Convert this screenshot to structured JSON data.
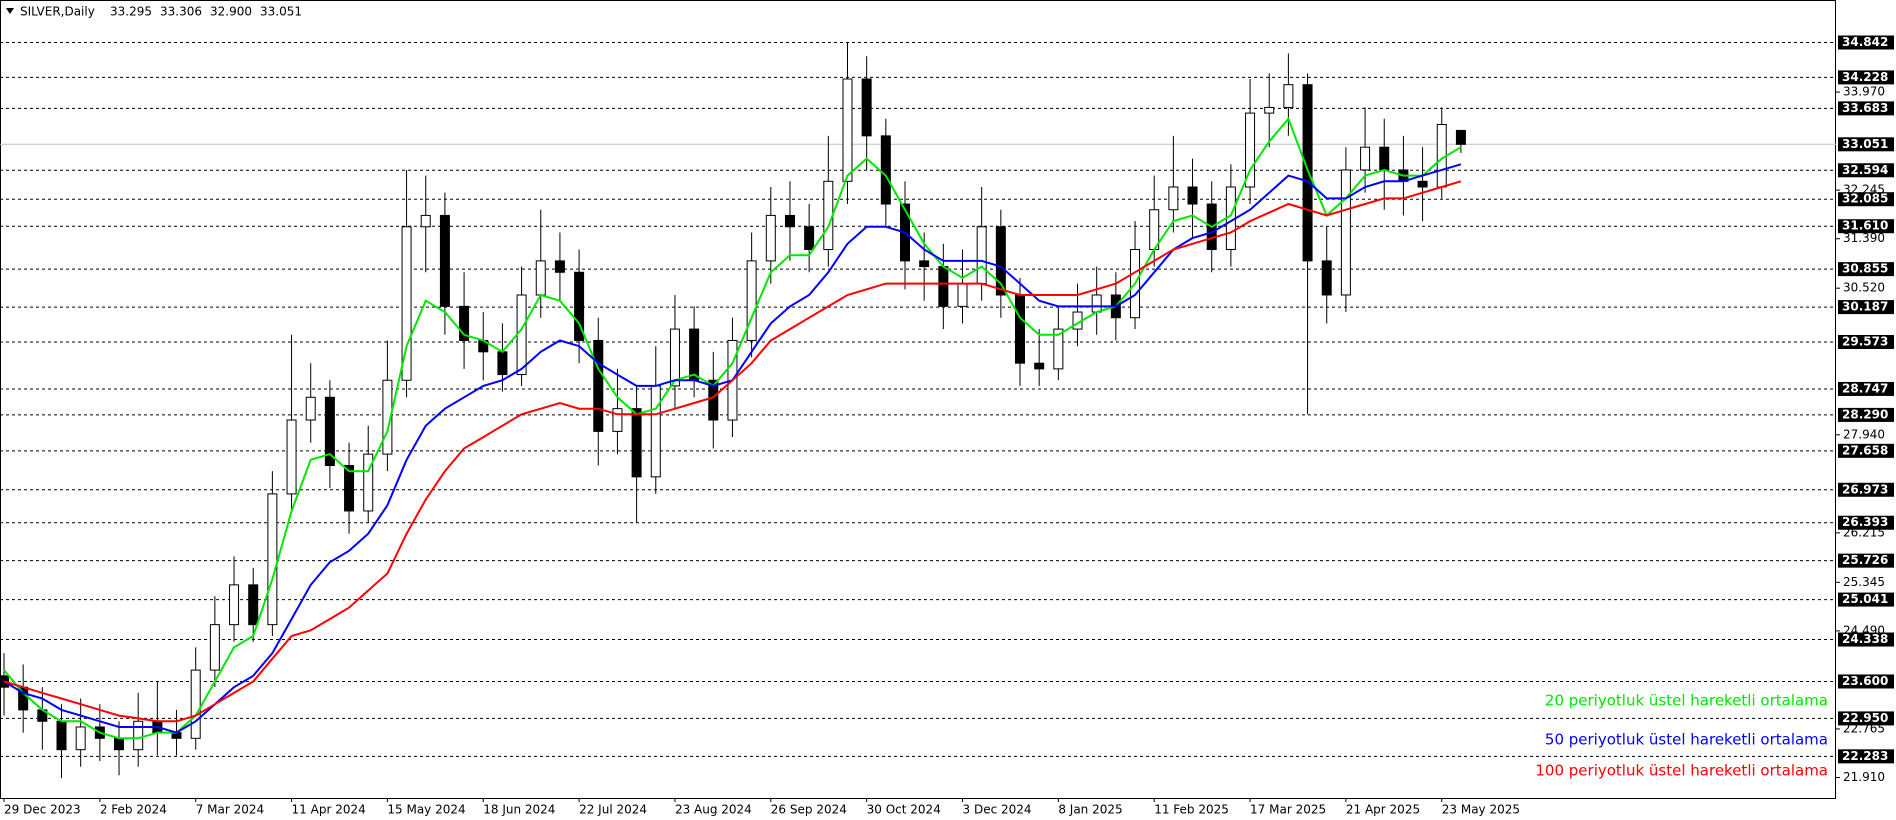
{
  "chart_data": {
    "type": "candlestick",
    "title": "SILVER,Daily",
    "info": [
      "33.295",
      "33.306",
      "32.900",
      "33.051"
    ],
    "categories": [
      "29 Dec 2023",
      null,
      null,
      null,
      null,
      "2 Feb 2024",
      null,
      null,
      null,
      null,
      "7 Mar 2024",
      null,
      null,
      null,
      null,
      "11 Apr 2024",
      null,
      null,
      null,
      null,
      "15 May 2024",
      null,
      null,
      null,
      null,
      "18 Jun 2024",
      null,
      null,
      null,
      null,
      "22 Jul 2024",
      null,
      null,
      null,
      null,
      "23 Aug 2024",
      null,
      null,
      null,
      null,
      "26 Sep 2024",
      null,
      null,
      null,
      null,
      "30 Oct 2024",
      null,
      null,
      null,
      null,
      "3 Dec 2024",
      null,
      null,
      null,
      null,
      "8 Jan 2025",
      null,
      null,
      null,
      null,
      "11 Feb 2025",
      null,
      null,
      null,
      null,
      "17 Mar 2025",
      null,
      null,
      null,
      null,
      "21 Apr 2025",
      null,
      null,
      null,
      null,
      "23 May 2025",
      null
    ],
    "ohlc": {
      "open": [
        23.7,
        23.5,
        23.1,
        22.9,
        22.4,
        22.8,
        22.6,
        22.4,
        22.9,
        22.7,
        22.6,
        23.8,
        24.6,
        25.3,
        24.6,
        26.9,
        28.2,
        28.6,
        27.4,
        26.6,
        27.6,
        28.9,
        31.6,
        31.8,
        30.2,
        29.6,
        29.4,
        29.0,
        30.4,
        31.0,
        30.8,
        29.6,
        28.0,
        28.4,
        27.2,
        28.8,
        29.8,
        28.9,
        28.2,
        29.6,
        31.0,
        31.8,
        31.6,
        31.2,
        32.4,
        34.2,
        33.2,
        32.0,
        31.0,
        30.9,
        30.2,
        30.6,
        31.6,
        30.4,
        29.2,
        29.1,
        29.8,
        30.1,
        30.4,
        30.0,
        31.2,
        31.9,
        32.3,
        32.0,
        31.2,
        32.3,
        33.6,
        33.7,
        34.1,
        31.0,
        30.4,
        32.6,
        33.0,
        32.6,
        32.4,
        32.3,
        33.295
      ],
      "high": [
        24.1,
        23.9,
        23.5,
        23.2,
        23.3,
        23.2,
        22.9,
        23.4,
        23.6,
        23.1,
        24.2,
        25.1,
        25.8,
        25.6,
        27.3,
        29.7,
        29.2,
        28.9,
        27.8,
        28.1,
        29.6,
        32.6,
        32.5,
        32.2,
        30.8,
        30.1,
        29.9,
        30.9,
        31.9,
        31.5,
        31.2,
        30.0,
        29.1,
        28.8,
        29.5,
        30.4,
        30.2,
        29.4,
        30.0,
        31.5,
        32.3,
        32.4,
        32.0,
        33.2,
        34.85,
        34.6,
        33.5,
        32.4,
        31.5,
        31.3,
        31.2,
        32.3,
        31.9,
        30.7,
        29.8,
        30.2,
        30.6,
        30.9,
        30.8,
        31.7,
        32.5,
        33.2,
        32.8,
        32.4,
        32.7,
        34.2,
        34.3,
        34.65,
        34.3,
        31.6,
        33.0,
        33.7,
        33.5,
        33.2,
        33.0,
        33.7,
        33.306
      ],
      "low": [
        23.0,
        22.7,
        22.4,
        21.9,
        22.1,
        22.2,
        21.95,
        22.1,
        22.3,
        22.3,
        22.4,
        23.5,
        24.3,
        24.3,
        24.4,
        26.6,
        27.8,
        27.0,
        26.2,
        26.4,
        27.3,
        28.6,
        30.8,
        29.7,
        29.1,
        28.9,
        28.7,
        28.8,
        30.0,
        30.3,
        29.2,
        27.4,
        27.6,
        26.4,
        26.9,
        28.4,
        28.6,
        27.7,
        27.9,
        29.3,
        30.6,
        31.0,
        30.8,
        30.9,
        32.0,
        32.6,
        31.6,
        30.5,
        30.3,
        29.8,
        29.9,
        30.3,
        30.0,
        28.8,
        28.8,
        28.9,
        29.5,
        29.7,
        29.6,
        29.8,
        30.9,
        31.5,
        31.4,
        30.8,
        30.9,
        32.0,
        33.0,
        33.2,
        28.3,
        29.9,
        30.1,
        32.2,
        31.9,
        31.8,
        31.7,
        32.1,
        32.9
      ],
      "close": [
        23.5,
        23.1,
        22.9,
        22.4,
        22.8,
        22.6,
        22.4,
        22.9,
        22.7,
        22.6,
        23.8,
        24.6,
        25.3,
        24.6,
        26.9,
        28.2,
        28.6,
        27.4,
        26.6,
        27.6,
        28.9,
        31.6,
        31.8,
        30.2,
        29.6,
        29.4,
        29.0,
        30.4,
        31.0,
        30.8,
        29.6,
        28.0,
        28.4,
        27.2,
        28.8,
        29.8,
        28.9,
        28.2,
        29.6,
        31.0,
        31.8,
        31.6,
        31.2,
        32.4,
        34.2,
        33.2,
        32.0,
        31.0,
        30.9,
        30.2,
        30.6,
        31.6,
        30.4,
        29.2,
        29.1,
        29.8,
        30.1,
        30.4,
        30.0,
        31.2,
        31.9,
        32.3,
        32.0,
        31.2,
        32.3,
        33.6,
        33.7,
        34.1,
        31.0,
        30.4,
        32.6,
        33.0,
        32.6,
        32.4,
        32.3,
        33.4,
        33.051
      ]
    },
    "series": [
      {
        "name": "20 periyotluk üstel hareketli ortalama",
        "color": "#00e600",
        "values": [
          23.8,
          23.4,
          23.1,
          22.9,
          22.9,
          22.7,
          22.6,
          22.6,
          22.7,
          22.7,
          23.0,
          23.6,
          24.2,
          24.4,
          25.4,
          26.6,
          27.5,
          27.6,
          27.3,
          27.3,
          28.0,
          29.5,
          30.3,
          30.1,
          29.7,
          29.6,
          29.4,
          29.8,
          30.4,
          30.3,
          29.9,
          29.1,
          28.6,
          28.3,
          28.4,
          28.9,
          29.0,
          28.8,
          29.2,
          30.0,
          30.8,
          31.1,
          31.1,
          31.6,
          32.5,
          32.8,
          32.5,
          31.9,
          31.3,
          30.9,
          30.7,
          30.9,
          30.6,
          30.0,
          29.7,
          29.7,
          29.9,
          30.1,
          30.2,
          30.6,
          31.2,
          31.7,
          31.8,
          31.6,
          31.8,
          32.6,
          33.1,
          33.5,
          32.6,
          31.8,
          32.1,
          32.5,
          32.6,
          32.5,
          32.5,
          32.8,
          33.0
        ]
      },
      {
        "name": "50 periyotluk üstel hareketli ortalama",
        "color": "#0000ff",
        "values": [
          23.6,
          23.4,
          23.3,
          23.1,
          23.0,
          22.9,
          22.8,
          22.8,
          22.8,
          22.7,
          22.9,
          23.2,
          23.5,
          23.7,
          24.1,
          24.7,
          25.3,
          25.7,
          25.9,
          26.2,
          26.7,
          27.5,
          28.1,
          28.4,
          28.6,
          28.8,
          28.9,
          29.1,
          29.4,
          29.6,
          29.5,
          29.2,
          29.0,
          28.8,
          28.8,
          28.9,
          28.9,
          28.8,
          28.9,
          29.4,
          29.9,
          30.2,
          30.4,
          30.8,
          31.3,
          31.6,
          31.6,
          31.5,
          31.2,
          31.0,
          31.0,
          31.0,
          30.9,
          30.6,
          30.3,
          30.2,
          30.2,
          30.2,
          30.2,
          30.4,
          30.8,
          31.2,
          31.4,
          31.5,
          31.7,
          31.9,
          32.2,
          32.5,
          32.4,
          32.1,
          32.1,
          32.3,
          32.4,
          32.4,
          32.5,
          32.6,
          32.7
        ]
      },
      {
        "name": "100 periyotluk üstel hareketli ortalama",
        "color": "#ff0000",
        "values": [
          23.6,
          23.5,
          23.4,
          23.3,
          23.2,
          23.1,
          23.0,
          22.95,
          22.9,
          22.9,
          23.0,
          23.2,
          23.4,
          23.6,
          24.0,
          24.4,
          24.5,
          24.7,
          24.9,
          25.2,
          25.5,
          26.2,
          26.8,
          27.3,
          27.7,
          27.9,
          28.1,
          28.3,
          28.4,
          28.5,
          28.4,
          28.4,
          28.3,
          28.3,
          28.3,
          28.4,
          28.5,
          28.6,
          28.9,
          29.2,
          29.6,
          29.8,
          30.0,
          30.2,
          30.4,
          30.5,
          30.6,
          30.6,
          30.6,
          30.6,
          30.6,
          30.6,
          30.5,
          30.4,
          30.4,
          30.4,
          30.4,
          30.5,
          30.6,
          30.8,
          31.0,
          31.2,
          31.3,
          31.4,
          31.5,
          31.7,
          31.85,
          32.0,
          31.9,
          31.8,
          31.9,
          32.0,
          32.1,
          32.1,
          32.2,
          32.3,
          32.4
        ]
      }
    ],
    "legend": "lower right",
    "ylim": [
      21.55,
      35.59
    ],
    "yticks": [
      {
        "value": 33.97,
        "label": "33.970"
      },
      32.245,
      {
        "value": 31.39,
        "label": "31.390"
      },
      {
        "value": 30.52,
        "label": "30.520"
      },
      {
        "value": 27.94,
        "label": "27.940"
      },
      26.215,
      25.345,
      {
        "value": 24.49,
        "label": "24.490"
      },
      22.765,
      {
        "value": 21.91,
        "label": "21.910"
      }
    ],
    "levels": [
      34.842,
      34.228,
      33.683,
      32.594,
      32.085,
      {
        "value": 31.61,
        "label": "31.610"
      },
      30.855,
      30.187,
      29.573,
      28.747,
      {
        "value": 28.29,
        "label": "28.290"
      },
      27.658,
      26.973,
      26.393,
      25.726,
      25.041,
      24.338,
      {
        "value": 23.6,
        "label": "23.600"
      },
      {
        "value": 22.95,
        "label": "22.950"
      },
      22.283
    ],
    "last_price": 33.051
  }
}
